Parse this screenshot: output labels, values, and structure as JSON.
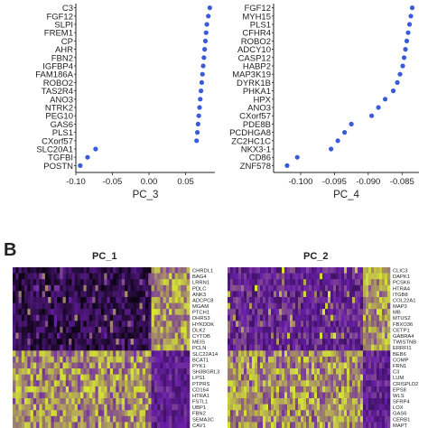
{
  "panel_b_label": "B",
  "chart_data": [
    {
      "type": "scatter",
      "panel": "PC_3 loadings",
      "xlabel": "PC_3",
      "xlim": [
        -0.1,
        0.09
      ],
      "xticks": [
        -0.1,
        -0.05,
        0.0,
        0.05
      ],
      "xtick_labels": [
        "-0.10",
        "-0.05",
        "0.00",
        "0.05"
      ],
      "genes": [
        "C3",
        "FGF12",
        "SLPI",
        "FREM1",
        "CP",
        "AHR",
        "FBN2",
        "IGFBP4",
        "FAM186A",
        "ROBO2",
        "TAS2R4",
        "ANO3",
        "NTRK2",
        "PEG10",
        "GAS6",
        "PLS1",
        "CXorf57",
        "SLC20A1",
        "TGFBI",
        "POSTN"
      ],
      "values": [
        0.083,
        0.081,
        0.079,
        0.078,
        0.077,
        0.076,
        0.075,
        0.074,
        0.073,
        0.072,
        0.071,
        0.07,
        0.069,
        0.068,
        0.067,
        0.066,
        0.065,
        -0.073,
        -0.084,
        -0.094
      ],
      "marker_color": "#3a5bd9",
      "grid": false
    },
    {
      "type": "scatter",
      "panel": "PC_4 loadings",
      "xlabel": "PC_4",
      "xlim": [
        -0.104,
        -0.0825
      ],
      "xticks": [
        -0.1,
        -0.095,
        -0.09,
        -0.085
      ],
      "xtick_labels": [
        "-0.100",
        "-0.095",
        "-0.090",
        "-0.085"
      ],
      "genes": [
        "FGF12",
        "MYH15",
        "PLS1",
        "CFHR4",
        "ROBO2",
        "ADCY10",
        "CASP12",
        "HABP2",
        "MAP3K19",
        "DYRK1B",
        "PHKA1",
        "HPX",
        "ANO3",
        "CXorf57",
        "PDE8B",
        "PCDHGA8",
        "ZC2HC1C",
        "NKX3-1",
        "CD86",
        "ZNF578"
      ],
      "values": [
        -0.0835,
        -0.0837,
        -0.0839,
        -0.0841,
        -0.0843,
        -0.0845,
        -0.0847,
        -0.0849,
        -0.0853,
        -0.0857,
        -0.0863,
        -0.0875,
        -0.0885,
        -0.0895,
        -0.0925,
        -0.0935,
        -0.0945,
        -0.0955,
        -0.1005,
        -0.102
      ],
      "marker_color": "#3a5bd9",
      "grid": false
    },
    {
      "type": "heatmap",
      "title": "PC_1",
      "genes": [
        "CHRDL1",
        "BAG4",
        "LRRN1",
        "PDLC",
        "ANK3",
        "ADCPC8",
        "MGAM",
        "PTCH1",
        "DHRS3",
        "HYKDDK",
        "DLK2",
        "CYTOB",
        "MEIS",
        "PCLN",
        "SLC22A14",
        "BCAT1",
        "PYK1",
        "SH3BGRL3",
        "LPS1",
        "PTPRS",
        "CD164",
        "HTRA1",
        "FSTL1",
        "UBP1",
        "FBN2",
        "SEMA3C",
        "CAV1"
      ],
      "colormap": [
        "#000000",
        "#6a1fa8",
        "#d6e830"
      ],
      "description_of_pattern": "upper rows mostly dark/purple with yellow on right; lower rows yellow on left, purple on right"
    },
    {
      "type": "heatmap",
      "title": "PC_2",
      "genes": [
        "CLIC3",
        "DAPK1",
        "PCSK6",
        "HTRA4",
        "ITGB8",
        "COL22A1",
        "MAP3",
        "MB",
        "MTUS2",
        "FBXO36",
        "CETP1",
        "GABRA4",
        "TWISTNB",
        "ERRFI1",
        "BEB6",
        "COMP",
        "FRN1",
        "C3",
        "LUM",
        "CRISPLD2",
        "EPS8",
        "WLS",
        "SFRP4",
        "LOX",
        "GAS6",
        "CERB1",
        "MAPT"
      ],
      "colormap": [
        "#000000",
        "#6a1fa8",
        "#d6e830"
      ],
      "description_of_pattern": "upper rows purple with yellow on right; lower rows yellow on left, purple on right"
    }
  ]
}
